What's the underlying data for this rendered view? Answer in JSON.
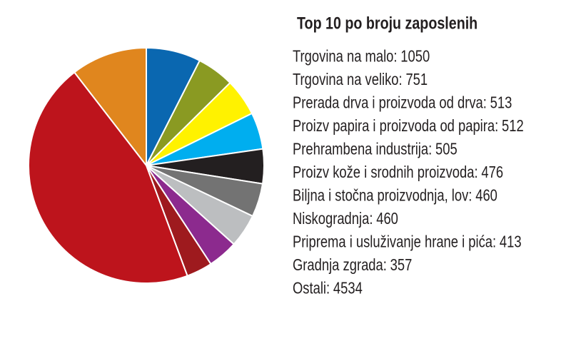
{
  "chart_data": {
    "type": "pie",
    "title": "Top 10 po broju zaposlenih",
    "categories": [
      "Trgovina na malo:",
      "Trgovina na veliko:",
      "Prerada drva i proizvoda od drva:",
      "Proizv papira i proizvoda od papira:",
      "Prehrambena industrija:",
      "Proizv kože i srodnih proizvoda:",
      "Biljna i stočna proizvodnja, lov:",
      "Niskogradnja:",
      "Priprema i usluživanje hrane i pića:",
      "Gradnja zgrada:",
      "Ostali:"
    ],
    "values": [
      1050,
      751,
      513,
      512,
      505,
      476,
      460,
      460,
      413,
      357,
      4534
    ],
    "colors": [
      "#e0861e",
      "#0a67b0",
      "#8a9a22",
      "#fff200",
      "#00aeef",
      "#231f20",
      "#737373",
      "#bcbec0",
      "#8c2a8e",
      "#9e1a1e",
      "#bd141c"
    ]
  }
}
